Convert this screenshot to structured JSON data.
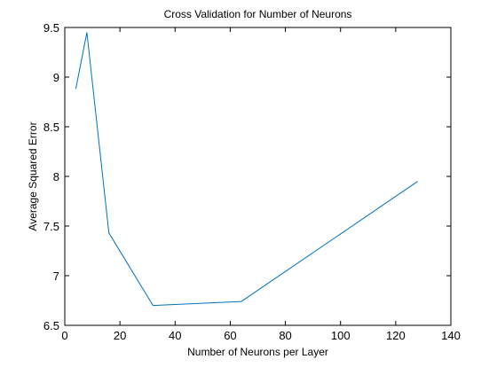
{
  "chart_data": {
    "type": "line",
    "title": "Cross Validation for Number of Neurons",
    "xlabel": "Number of Neurons per Layer",
    "ylabel": "Average Squared Error",
    "xlim": [
      0,
      140
    ],
    "ylim": [
      6.5,
      9.5
    ],
    "xticks": [
      0,
      20,
      40,
      60,
      80,
      100,
      120,
      140
    ],
    "yticks": [
      6.5,
      7,
      7.5,
      8,
      8.5,
      9,
      9.5
    ],
    "xtick_labels": [
      "0",
      "20",
      "40",
      "60",
      "80",
      "100",
      "120",
      "140"
    ],
    "ytick_labels": [
      "6.5",
      "7",
      "7.5",
      "8",
      "8.5",
      "9",
      "9.5"
    ],
    "grid": false,
    "series": [
      {
        "color": "#0072bd",
        "x": [
          4,
          8,
          16,
          32,
          64,
          128
        ],
        "y": [
          8.88,
          9.45,
          7.43,
          6.7,
          6.74,
          7.95
        ]
      }
    ]
  }
}
